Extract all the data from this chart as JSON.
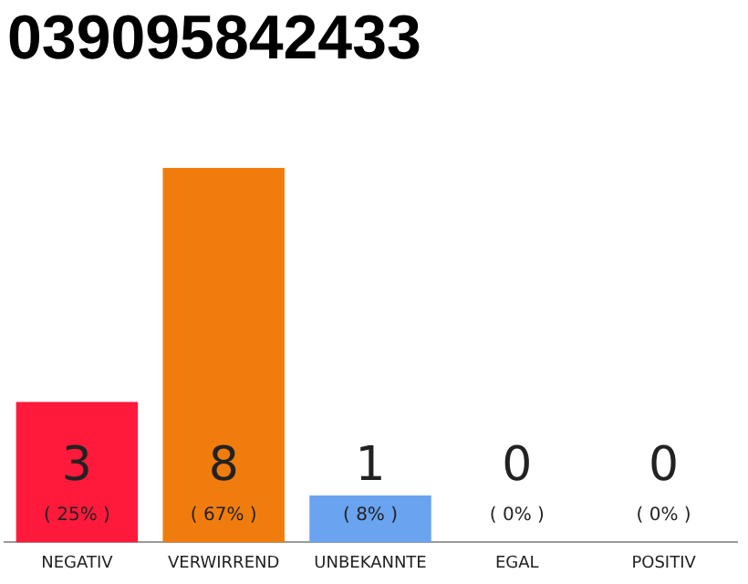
{
  "chart_data": {
    "type": "bar",
    "title": "039095842433",
    "categories": [
      "NEGATIV",
      "VERWIRREND",
      "UNBEKANNTE",
      "EGAL",
      "POSITIV"
    ],
    "values": [
      3,
      8,
      1,
      0,
      0
    ],
    "colors": [
      "#ff1a3c",
      "#f07c0e",
      "#6aa3f0",
      "#cccccc",
      "#cccccc"
    ],
    "value_labels": [
      "3",
      "8",
      "1",
      "0",
      "0"
    ],
    "annotations": [
      "( 25% )",
      "( 67% )",
      "( 8% )",
      "( 0% )",
      "( 0% )"
    ],
    "tick_labels": "x",
    "grid": false,
    "legend": false
  }
}
